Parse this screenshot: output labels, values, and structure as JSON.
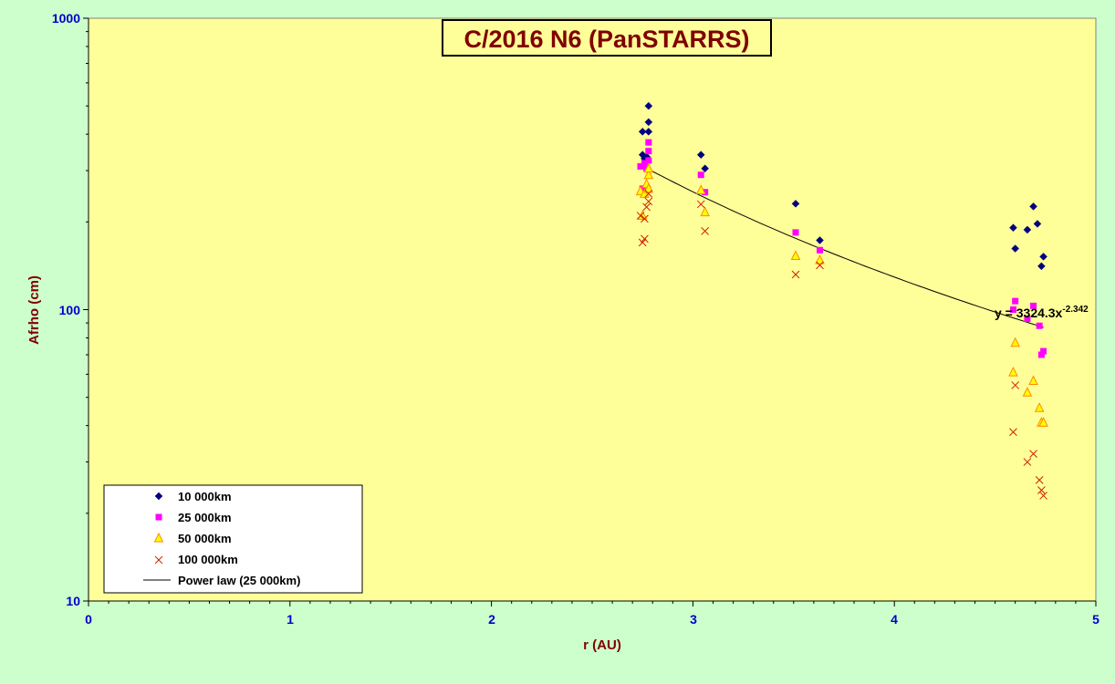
{
  "chart_data": {
    "type": "scatter",
    "title": "C/2016 N6 (PanSTARRS)",
    "xlabel": "r (AU)",
    "ylabel": "Afrho (cm)",
    "xlim": [
      0,
      5
    ],
    "ylim": [
      10,
      1000
    ],
    "yscale": "log",
    "x_ticks": [
      "0",
      "1",
      "2",
      "3",
      "4",
      "5"
    ],
    "y_ticks": [
      "10",
      "100",
      "1000"
    ],
    "grid": false,
    "legend_position": "bottom-left",
    "fit_equation_main": "y = 3324.3x",
    "fit_equation_exp": "-2.342",
    "series": [
      {
        "name": "10 000km",
        "marker": "diamond",
        "color": "#000080",
        "x": [
          2.75,
          2.75,
          2.76,
          2.77,
          2.78,
          2.78,
          2.78,
          3.04,
          3.06,
          3.51,
          3.63,
          4.59,
          4.6,
          4.66,
          4.69,
          4.71,
          4.73,
          4.74
        ],
        "y": [
          408,
          340,
          330,
          335,
          408,
          440,
          500,
          340,
          305,
          231,
          173,
          191,
          162,
          188,
          226,
          197,
          141,
          152
        ]
      },
      {
        "name": "25 000km",
        "marker": "square",
        "color": "#ff00ff",
        "x": [
          2.74,
          2.75,
          2.76,
          2.77,
          2.78,
          2.78,
          2.78,
          3.04,
          3.06,
          3.51,
          3.63,
          4.59,
          4.6,
          4.66,
          4.69,
          4.72,
          4.73,
          4.74
        ],
        "y": [
          310,
          260,
          318,
          305,
          325,
          350,
          375,
          290,
          253,
          184,
          160,
          100,
          107,
          93,
          103,
          88,
          70,
          72
        ]
      },
      {
        "name": "50 000km",
        "marker": "triangle",
        "color": "#ffa500",
        "x": [
          2.74,
          2.75,
          2.76,
          2.77,
          2.78,
          2.78,
          2.78,
          3.04,
          3.06,
          3.51,
          3.63,
          4.59,
          4.6,
          4.66,
          4.69,
          4.72,
          4.73,
          4.74
        ],
        "y": [
          255,
          210,
          250,
          270,
          290,
          260,
          305,
          257,
          216,
          153,
          148,
          61,
          77,
          52,
          57,
          46,
          41,
          41
        ]
      },
      {
        "name": "100 000km",
        "marker": "cross",
        "color": "#cc2200",
        "x": [
          2.74,
          2.75,
          2.76,
          2.76,
          2.77,
          2.78,
          2.78,
          3.04,
          3.06,
          3.51,
          3.63,
          4.59,
          4.6,
          4.66,
          4.69,
          4.72,
          4.73,
          4.74
        ],
        "y": [
          210,
          170,
          175,
          205,
          225,
          235,
          250,
          230,
          186,
          132,
          142,
          38,
          55,
          30,
          32,
          26,
          24,
          23
        ]
      }
    ],
    "fit": {
      "name": "Power law (25 000km)",
      "coefficient": 3324.3,
      "exponent": -2.342,
      "x_range": [
        2.78,
        4.74
      ],
      "color": "#000000"
    }
  }
}
